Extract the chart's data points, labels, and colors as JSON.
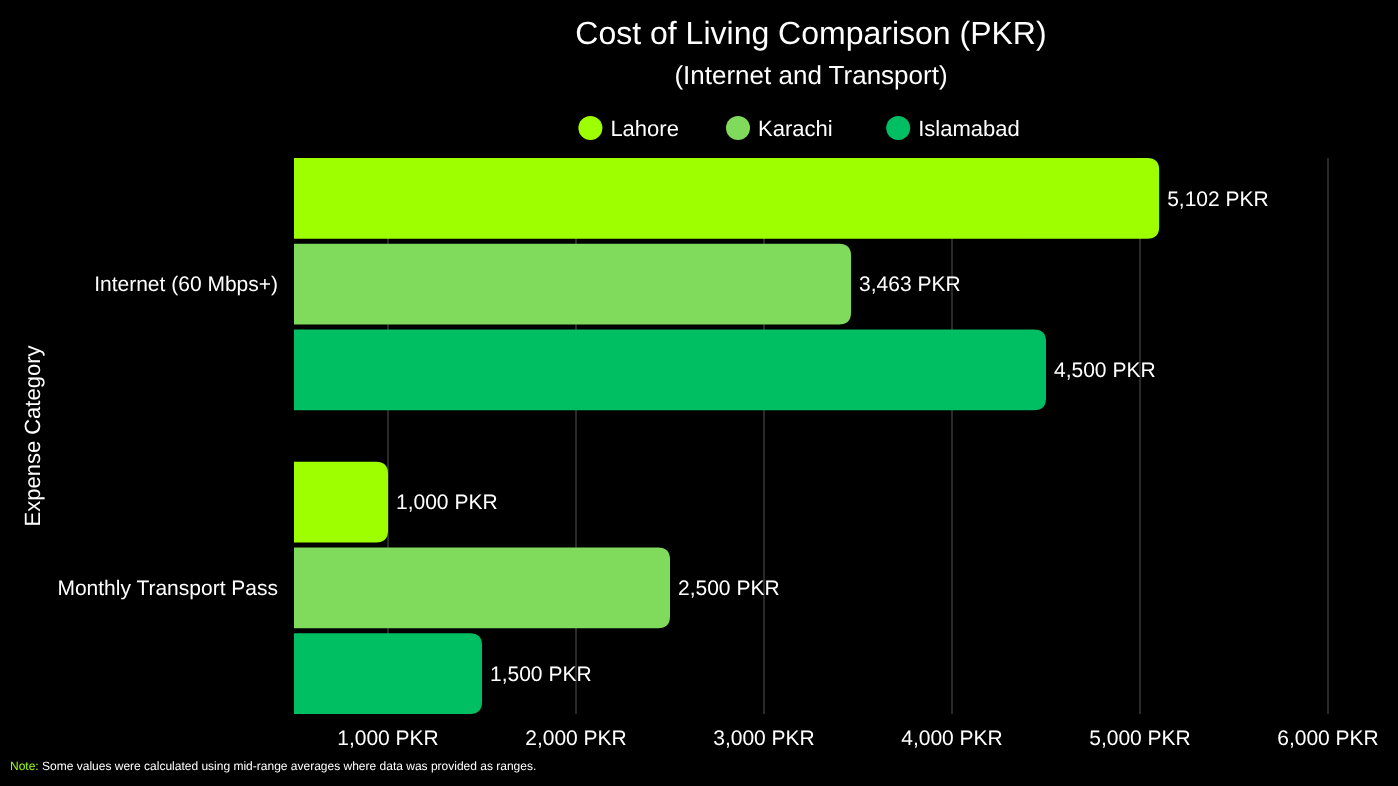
{
  "chart_data": {
    "type": "bar",
    "orientation": "horizontal",
    "title": "Cost of Living Comparison (PKR)",
    "subtitle": "(Internet and Transport)",
    "ylabel": "Expense Category",
    "categories": [
      "Internet (60 Mbps+)",
      "Monthly Transport Pass"
    ],
    "series": [
      {
        "name": "Lahore",
        "color": "#9eff00",
        "values": [
          5102,
          1000
        ],
        "value_labels": [
          "5,102 PKR",
          "1,000 PKR"
        ]
      },
      {
        "name": "Karachi",
        "color": "#80db5c",
        "values": [
          3463,
          2500
        ],
        "value_labels": [
          "3,463 PKR",
          "2,500 PKR"
        ]
      },
      {
        "name": "Islamabad",
        "color": "#00bf63",
        "values": [
          4500,
          1500
        ],
        "value_labels": [
          "4,500 PKR",
          "1,500 PKR"
        ]
      }
    ],
    "xlim": [
      500,
      6000
    ],
    "xticks": [
      {
        "value": 1000,
        "label": "1,000 PKR"
      },
      {
        "value": 2000,
        "label": "2,000 PKR"
      },
      {
        "value": 3000,
        "label": "3,000 PKR"
      },
      {
        "value": 4000,
        "label": "4,000 PKR"
      },
      {
        "value": 5000,
        "label": "5,000 PKR"
      },
      {
        "value": 6000,
        "label": "6,000 PKR"
      }
    ],
    "grid": "x",
    "legend": "top",
    "annotations": [
      "Note: Some values were calculated using mid-range averages where data was provided as ranges."
    ]
  }
}
